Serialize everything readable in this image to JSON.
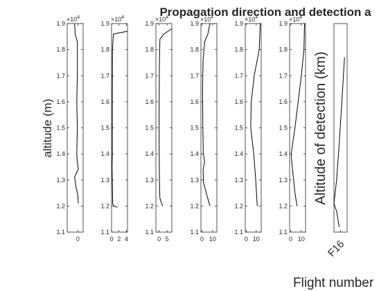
{
  "chart_data": {
    "type": "line",
    "title": "Propagation direction and detection a",
    "ylabel": "altitude (m)",
    "y_exponent": "×10",
    "y_exponent_power": "4",
    "ylim": [
      11000,
      19000
    ],
    "yticks": [
      11000,
      12000,
      13000,
      14000,
      15000,
      16000,
      17000,
      18000,
      19000
    ],
    "ytick_labels": [
      "1.1",
      "1.2",
      "1.3",
      "1.4",
      "1.5",
      "1.6",
      "1.7",
      "1.8",
      "1.9"
    ],
    "panels": [
      {
        "xlim": [
          -1.0,
          0.5
        ],
        "xticks": [
          {
            "v": 0,
            "label": "0"
          }
        ],
        "curve": [
          [
            -0.3,
            19000
          ],
          [
            -0.25,
            18600
          ],
          [
            -0.05,
            18300
          ],
          [
            -0.05,
            17000
          ],
          [
            -0.1,
            16000
          ],
          [
            -0.05,
            15000
          ],
          [
            -0.1,
            14000
          ],
          [
            -0.05,
            13700
          ],
          [
            0.05,
            13400
          ],
          [
            -0.1,
            13300
          ],
          [
            -0.3,
            13100
          ],
          [
            -0.2,
            12800
          ],
          [
            0.0,
            12400
          ],
          [
            0.05,
            12100
          ]
        ]
      },
      {
        "xlim": [
          0,
          4.3
        ],
        "xticks": [
          {
            "v": 0,
            "label": "0"
          },
          {
            "v": 2,
            "label": "2"
          },
          {
            "v": 4,
            "label": "4"
          }
        ],
        "curve": [
          [
            4.2,
            18700
          ],
          [
            0.5,
            18600
          ],
          [
            0.25,
            18000
          ],
          [
            0.2,
            16000
          ],
          [
            0.2,
            14000
          ],
          [
            0.15,
            13500
          ],
          [
            0.3,
            12100
          ],
          [
            0.6,
            12000
          ],
          [
            1.6,
            11950
          ]
        ]
      },
      {
        "xlim": [
          -2,
          8
        ],
        "xticks": [
          {
            "v": 0,
            "label": "0"
          },
          {
            "v": 5,
            "label": "5"
          }
        ],
        "curve": [
          [
            8.0,
            18800
          ],
          [
            3.0,
            18600
          ],
          [
            0.5,
            18400
          ],
          [
            0.2,
            17500
          ],
          [
            0.0,
            15500
          ],
          [
            0.1,
            14000
          ],
          [
            0.2,
            13000
          ],
          [
            0.5,
            12300
          ],
          [
            2.2,
            12000
          ]
        ]
      },
      {
        "xlim": [
          -1,
          14
        ],
        "xticks": [
          {
            "v": 0,
            "label": "0"
          },
          {
            "v": 10,
            "label": "10"
          }
        ],
        "curve": [
          [
            7.5,
            19000
          ],
          [
            5.5,
            18600
          ],
          [
            2.5,
            18300
          ],
          [
            1.0,
            17600
          ],
          [
            0.5,
            16500
          ],
          [
            0.8,
            15000
          ],
          [
            1.2,
            14000
          ],
          [
            2.5,
            13700
          ],
          [
            1.0,
            13400
          ],
          [
            1.5,
            12900
          ],
          [
            4.0,
            12500
          ],
          [
            7.5,
            12000
          ]
        ]
      },
      {
        "xlim": [
          -1,
          15
        ],
        "xticks": [
          {
            "v": 0,
            "label": "0"
          },
          {
            "v": 10,
            "label": "10"
          }
        ],
        "curve": [
          [
            14.0,
            19000
          ],
          [
            13.0,
            18000
          ],
          [
            8.0,
            17000
          ],
          [
            5.0,
            16000
          ],
          [
            4.5,
            15000
          ],
          [
            7.5,
            14000
          ],
          [
            9.5,
            13000
          ],
          [
            11.0,
            12000
          ]
        ]
      },
      {
        "xlim": [
          -1,
          14
        ],
        "xticks": [
          {
            "v": 0,
            "label": "0"
          },
          {
            "v": 10,
            "label": "10"
          }
        ],
        "curve": [
          [
            13.0,
            19000
          ],
          [
            12.5,
            18000
          ],
          [
            10.0,
            17000
          ],
          [
            7.0,
            16000
          ],
          [
            4.0,
            15000
          ],
          [
            0.5,
            14000
          ],
          [
            1.0,
            13700
          ],
          [
            4.0,
            12500
          ],
          [
            6.0,
            12000
          ]
        ]
      }
    ],
    "detection_panel": {
      "ylabel": "Altitude of detection (km)",
      "xlabel": "Flight number",
      "categories": [
        "F16"
      ],
      "curve": [
        [
          0.8,
          17700
        ],
        [
          0.6,
          16000
        ],
        [
          0.35,
          14000
        ],
        [
          0.2,
          13000
        ],
        [
          0.0,
          12100
        ],
        [
          0.2,
          11800
        ],
        [
          0.4,
          11200
        ]
      ]
    }
  }
}
